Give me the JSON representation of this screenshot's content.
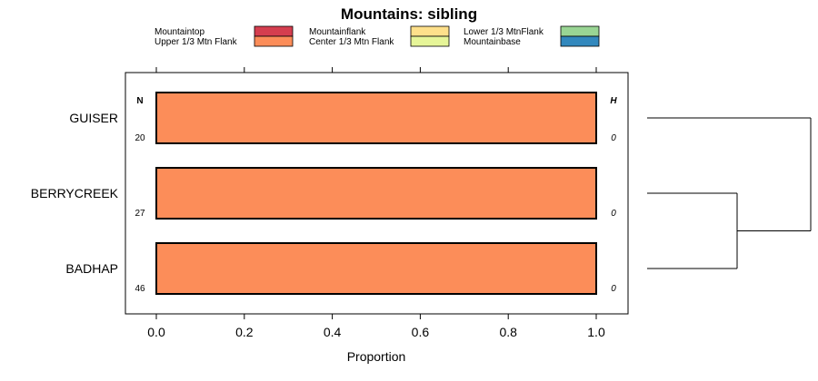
{
  "chart_data": {
    "type": "bar",
    "orientation": "horizontal",
    "stacked": true,
    "title": "Mountains: sibling",
    "xlabel": "Proportion",
    "xlim": [
      -0.07,
      1.07
    ],
    "xticks": [
      0.0,
      0.2,
      0.4,
      0.6,
      0.8,
      1.0
    ],
    "xtick_labels": [
      "0.0",
      "0.2",
      "0.4",
      "0.6",
      "0.8",
      "1.0"
    ],
    "categories": [
      "GUISER",
      "BERRYCREEK",
      "BADHAP"
    ],
    "n_header": "N",
    "h_header": "H",
    "n_values": [
      "20",
      "27",
      "46"
    ],
    "h_values": [
      "0",
      "0",
      "0"
    ],
    "legend": [
      {
        "label": "Mountaintop",
        "color": "#d53e4f"
      },
      {
        "label": "Upper 1/3 Mtn Flank",
        "color": "#fc8d59"
      },
      {
        "label": "Mountainflank",
        "color": "#fee08b"
      },
      {
        "label": "Center 1/3 Mtn Flank",
        "color": "#e6f598"
      },
      {
        "label": "Lower 1/3 MtnFlank",
        "color": "#99d594"
      },
      {
        "label": "Mountainbase",
        "color": "#3288bd"
      }
    ],
    "series": [
      {
        "name": "Mountaintop",
        "values": [
          0,
          0,
          0
        ]
      },
      {
        "name": "Upper 1/3 Mtn Flank",
        "values": [
          1.0,
          1.0,
          1.0
        ]
      },
      {
        "name": "Mountainflank",
        "values": [
          0,
          0,
          0
        ]
      },
      {
        "name": "Center 1/3 Mtn Flank",
        "values": [
          0,
          0,
          0
        ]
      },
      {
        "name": "Lower 1/3 MtnFlank",
        "values": [
          0,
          0,
          0
        ]
      },
      {
        "name": "Mountainbase",
        "values": [
          0,
          0,
          0
        ]
      }
    ],
    "dendrogram": {
      "merges": [
        {
          "left": "BERRYCREEK",
          "right": "BADHAP",
          "height": 0.55
        },
        {
          "left": "GUISER",
          "right": "BERRYCREEK+BADHAP",
          "height": 1.0
        }
      ]
    }
  }
}
